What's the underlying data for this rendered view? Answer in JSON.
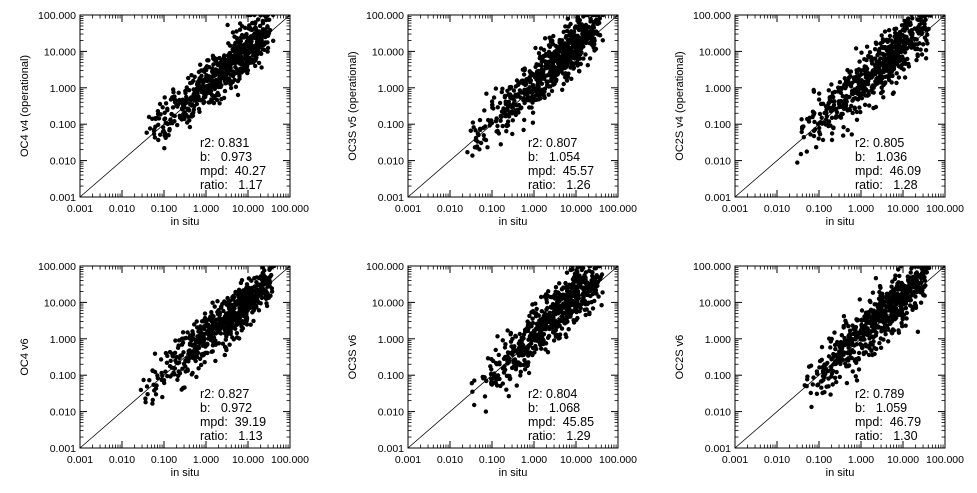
{
  "figure": {
    "background": "#ffffff",
    "ink": "#000000"
  },
  "chart_data": [
    {
      "type": "scatter",
      "row": 0,
      "col": 0,
      "xlabel": "in situ",
      "ylabel": "OC4 v4 (operational)",
      "xscale": "log",
      "yscale": "log",
      "xlim": [
        0.001,
        100
      ],
      "ylim": [
        0.001,
        100
      ],
      "xticks": [
        "0.001",
        "0.010",
        "0.100",
        "1.000",
        "10.000",
        "100.000"
      ],
      "yticks": [
        "0.001",
        "0.010",
        "0.100",
        "1.000",
        "10.000",
        "100.000"
      ],
      "one_to_one_line": true,
      "grid": false,
      "stats": {
        "r2": "0.831",
        "b": "0.973",
        "mpd": "40.27",
        "ratio": "1.17"
      },
      "stat_lines": [
        "r2: 0.831",
        "b:   0.973",
        "mpd:  40.27",
        "ratio:   1.17"
      ],
      "points": {
        "count": 650,
        "seed": 11,
        "log_slope": 1.0,
        "log_offset": 0.07,
        "scatter_sd": 0.33,
        "x_log_min": -1.55,
        "x_log_max": 1.55
      }
    },
    {
      "type": "scatter",
      "row": 0,
      "col": 1,
      "xlabel": "in situ",
      "ylabel": "OC3S v5 (operational)",
      "xscale": "log",
      "yscale": "log",
      "xlim": [
        0.001,
        100
      ],
      "ylim": [
        0.001,
        100
      ],
      "xticks": [
        "0.001",
        "0.010",
        "0.100",
        "1.000",
        "10.000",
        "100.000"
      ],
      "yticks": [
        "0.001",
        "0.010",
        "0.100",
        "1.000",
        "10.000",
        "100.000"
      ],
      "one_to_one_line": true,
      "grid": false,
      "stats": {
        "r2": "0.807",
        "b": "1.054",
        "mpd": "45.57",
        "ratio": "1.26"
      },
      "stat_lines": [
        "r2: 0.807",
        "b:   1.054",
        "mpd:  45.57",
        "ratio:   1.26"
      ],
      "points": {
        "count": 650,
        "seed": 23,
        "log_slope": 1.05,
        "log_offset": 0.1,
        "scatter_sd": 0.36,
        "x_log_min": -1.55,
        "x_log_max": 1.55
      }
    },
    {
      "type": "scatter",
      "row": 0,
      "col": 2,
      "xlabel": "in situ",
      "ylabel": "OC2S v4 (operational)",
      "xscale": "log",
      "yscale": "log",
      "xlim": [
        0.001,
        100
      ],
      "ylim": [
        0.001,
        100
      ],
      "xticks": [
        "0.001",
        "0.010",
        "0.100",
        "1.000",
        "10.000",
        "100.000"
      ],
      "yticks": [
        "0.001",
        "0.010",
        "0.100",
        "1.000",
        "10.000",
        "100.000"
      ],
      "one_to_one_line": true,
      "grid": false,
      "stats": {
        "r2": "0.805",
        "b": "1.036",
        "mpd": "46.09",
        "ratio": "1.28"
      },
      "stat_lines": [
        "r2: 0.805",
        "b:   1.036",
        "mpd:  46.09",
        "ratio:   1.28"
      ],
      "points": {
        "count": 650,
        "seed": 37,
        "log_slope": 1.04,
        "log_offset": 0.1,
        "scatter_sd": 0.36,
        "x_log_min": -1.55,
        "x_log_max": 1.55
      }
    },
    {
      "type": "scatter",
      "row": 1,
      "col": 0,
      "xlabel": "in situ",
      "ylabel": "OC4 v6",
      "xscale": "log",
      "yscale": "log",
      "xlim": [
        0.001,
        100
      ],
      "ylim": [
        0.001,
        100
      ],
      "xticks": [
        "0.001",
        "0.010",
        "0.100",
        "1.000",
        "10.000",
        "100.000"
      ],
      "yticks": [
        "0.001",
        "0.010",
        "0.100",
        "1.000",
        "10.000",
        "100.000"
      ],
      "one_to_one_line": true,
      "grid": false,
      "stats": {
        "r2": "0.827",
        "b": "0.972",
        "mpd": "39.19",
        "ratio": "1.13"
      },
      "stat_lines": [
        "r2: 0.827",
        "b:   0.972",
        "mpd:  39.19",
        "ratio:   1.13"
      ],
      "points": {
        "count": 650,
        "seed": 41,
        "log_slope": 0.98,
        "log_offset": 0.06,
        "scatter_sd": 0.33,
        "x_log_min": -1.55,
        "x_log_max": 1.55
      }
    },
    {
      "type": "scatter",
      "row": 1,
      "col": 1,
      "xlabel": "in situ",
      "ylabel": "OC3S v6",
      "xscale": "log",
      "yscale": "log",
      "xlim": [
        0.001,
        100
      ],
      "ylim": [
        0.001,
        100
      ],
      "xticks": [
        "0.001",
        "0.010",
        "0.100",
        "1.000",
        "10.000",
        "100.000"
      ],
      "yticks": [
        "0.001",
        "0.010",
        "0.100",
        "1.000",
        "10.000",
        "100.000"
      ],
      "one_to_one_line": true,
      "grid": false,
      "stats": {
        "r2": "0.804",
        "b": "1.068",
        "mpd": "45.85",
        "ratio": "1.29"
      },
      "stat_lines": [
        "r2: 0.804",
        "b:   1.068",
        "mpd:  45.85",
        "ratio:   1.29"
      ],
      "points": {
        "count": 650,
        "seed": 53,
        "log_slope": 1.07,
        "log_offset": 0.1,
        "scatter_sd": 0.36,
        "x_log_min": -1.55,
        "x_log_max": 1.55
      }
    },
    {
      "type": "scatter",
      "row": 1,
      "col": 2,
      "xlabel": "in situ",
      "ylabel": "OC2S v6",
      "xscale": "log",
      "yscale": "log",
      "xlim": [
        0.001,
        100
      ],
      "ylim": [
        0.001,
        100
      ],
      "xticks": [
        "0.001",
        "0.010",
        "0.100",
        "1.000",
        "10.000",
        "100.000"
      ],
      "yticks": [
        "0.001",
        "0.010",
        "0.100",
        "1.000",
        "10.000",
        "100.000"
      ],
      "one_to_one_line": true,
      "grid": false,
      "stats": {
        "r2": "0.789",
        "b": "1.059",
        "mpd": "46.79",
        "ratio": "1.30"
      },
      "stat_lines": [
        "r2: 0.789",
        "b:   1.059",
        "mpd:  46.79",
        "ratio:   1.30"
      ],
      "points": {
        "count": 650,
        "seed": 67,
        "log_slope": 1.06,
        "log_offset": 0.11,
        "scatter_sd": 0.37,
        "x_log_min": -1.55,
        "x_log_max": 1.55
      }
    }
  ]
}
